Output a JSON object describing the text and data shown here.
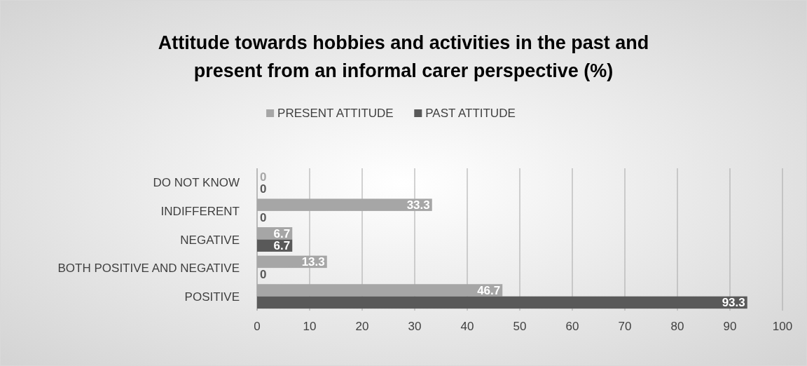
{
  "chart_data": {
    "type": "bar",
    "orientation": "horizontal",
    "title": "Attitude towards hobbies and activities in the past and present from an informal carer perspective (%)",
    "categories": [
      "DO NOT KNOW",
      "INDIFFERENT",
      "NEGATIVE",
      "BOTH POSITIVE AND NEGATIVE",
      "POSITIVE"
    ],
    "series": [
      {
        "name": "PRESENT ATTITUDE",
        "color": "#a6a6a6",
        "values": [
          0,
          33.3,
          6.7,
          13.3,
          46.7
        ]
      },
      {
        "name": "PAST ATTITUDE",
        "color": "#595959",
        "values": [
          0,
          0,
          6.7,
          0,
          93.3
        ]
      }
    ],
    "xlim": [
      0,
      100
    ],
    "xticks": [
      0,
      10,
      20,
      30,
      40,
      50,
      60,
      70,
      80,
      90,
      100
    ],
    "grid": "x",
    "legend": "top",
    "data_labels": true
  }
}
